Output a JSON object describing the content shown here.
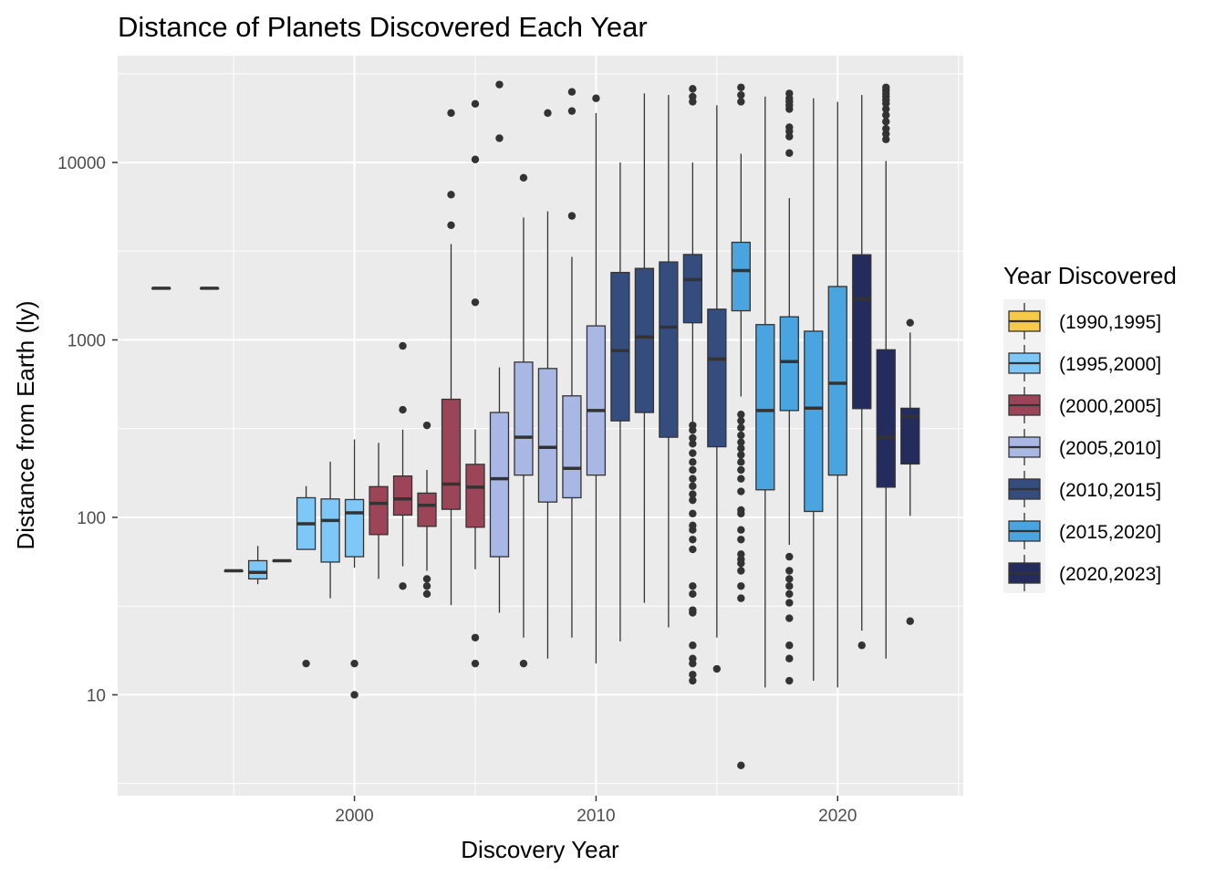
{
  "chart_data": {
    "type": "boxplot",
    "title": "Distance of Planets Discovered Each Year",
    "xlabel": "Discovery Year",
    "ylabel": "Distance from Earth (ly)",
    "x_ticks": [
      2000,
      2010,
      2020
    ],
    "y_ticks": [
      10,
      100,
      1000,
      10000
    ],
    "y_scale": "log10",
    "xlim": [
      1990.2,
      2025.2
    ],
    "ylim": [
      2.7,
      40000
    ],
    "grid": true,
    "legend": {
      "title": "Year Discovered",
      "position": "right",
      "entries": [
        {
          "label": "(1990,1995]",
          "color": "#F7C948"
        },
        {
          "label": "(1995,2000]",
          "color": "#7EC8F8"
        },
        {
          "label": "(2000,2005]",
          "color": "#9C4558"
        },
        {
          "label": "(2005,2010]",
          "color": "#A9B7E4"
        },
        {
          "label": "(2010,2015]",
          "color": "#344C7E"
        },
        {
          "label": "(2015,2020]",
          "color": "#4AA4E0"
        },
        {
          "label": "(2020,2023]",
          "color": "#232C5C"
        }
      ]
    },
    "boxes": [
      {
        "year": 1992,
        "group": 0,
        "q1": 1957,
        "median": 1957,
        "q3": 1957,
        "lower": 1957,
        "upper": 1957,
        "outliers": []
      },
      {
        "year": 1994,
        "group": 0,
        "q1": 1957,
        "median": 1957,
        "q3": 1957,
        "lower": 1957,
        "upper": 1957,
        "outliers": []
      },
      {
        "year": 1995,
        "group": 0,
        "q1": 50,
        "median": 50,
        "q3": 50,
        "lower": 50,
        "upper": 50,
        "outliers": []
      },
      {
        "year": 1996,
        "group": 1,
        "q1": 45,
        "median": 49,
        "q3": 57,
        "lower": 42,
        "upper": 69,
        "outliers": []
      },
      {
        "year": 1997,
        "group": 1,
        "q1": 57,
        "median": 57,
        "q3": 57,
        "lower": 57,
        "upper": 57,
        "outliers": []
      },
      {
        "year": 1998,
        "group": 1,
        "q1": 66,
        "median": 92,
        "q3": 129,
        "lower": 66,
        "upper": 150,
        "outliers": [
          15
        ]
      },
      {
        "year": 1999,
        "group": 1,
        "q1": 56,
        "median": 96,
        "q3": 127,
        "lower": 35,
        "upper": 206,
        "outliers": []
      },
      {
        "year": 2000,
        "group": 1,
        "q1": 60,
        "median": 106,
        "q3": 126,
        "lower": 52,
        "upper": 275,
        "outliers": [
          15,
          10
        ]
      },
      {
        "year": 2001,
        "group": 2,
        "q1": 80,
        "median": 120,
        "q3": 149,
        "lower": 45,
        "upper": 263,
        "outliers": []
      },
      {
        "year": 2002,
        "group": 2,
        "q1": 103,
        "median": 127,
        "q3": 171,
        "lower": 53,
        "upper": 312,
        "outliers": [
          41,
          404,
          925
        ]
      },
      {
        "year": 2003,
        "group": 2,
        "q1": 89,
        "median": 117,
        "q3": 137,
        "lower": 50,
        "upper": 185,
        "outliers": [
          37,
          41,
          45,
          330
        ]
      },
      {
        "year": 2004,
        "group": 2,
        "q1": 111,
        "median": 154,
        "q3": 463,
        "lower": 32,
        "upper": 3470,
        "outliers": [
          4430,
          6590,
          19000
        ]
      },
      {
        "year": 2005,
        "group": 2,
        "q1": 88,
        "median": 148,
        "q3": 199,
        "lower": 51,
        "upper": 313,
        "outliers": [
          21,
          15,
          1630,
          10400,
          21400
        ]
      },
      {
        "year": 2006,
        "group": 3,
        "q1": 60,
        "median": 165,
        "q3": 390,
        "lower": 29,
        "upper": 700,
        "outliers": [
          13700,
          27500
        ]
      },
      {
        "year": 2007,
        "group": 3,
        "q1": 173,
        "median": 283,
        "q3": 750,
        "lower": 21,
        "upper": 4900,
        "outliers": [
          15,
          8200
        ]
      },
      {
        "year": 2008,
        "group": 3,
        "q1": 122,
        "median": 248,
        "q3": 690,
        "lower": 16,
        "upper": 5300,
        "outliers": [
          19000
        ]
      },
      {
        "year": 2009,
        "group": 3,
        "q1": 129,
        "median": 189,
        "q3": 484,
        "lower": 21,
        "upper": 2940,
        "outliers": [
          5000,
          19500,
          25000
        ]
      },
      {
        "year": 2010,
        "group": 3,
        "q1": 173,
        "median": 400,
        "q3": 1200,
        "lower": 15,
        "upper": 19000,
        "outliers": [
          23000
        ]
      },
      {
        "year": 2011,
        "group": 4,
        "q1": 350,
        "median": 870,
        "q3": 2400,
        "lower": 20,
        "upper": 10000,
        "outliers": []
      },
      {
        "year": 2012,
        "group": 4,
        "q1": 390,
        "median": 1040,
        "q3": 2530,
        "lower": 33,
        "upper": 24500,
        "outliers": []
      },
      {
        "year": 2013,
        "group": 4,
        "q1": 283,
        "median": 1180,
        "q3": 2750,
        "lower": 24,
        "upper": 24000,
        "outliers": []
      },
      {
        "year": 2014,
        "group": 4,
        "q1": 1250,
        "median": 2190,
        "q3": 3030,
        "lower": 300,
        "upper": 10000,
        "outliers": [
          12,
          13,
          15,
          16,
          19,
          29,
          30,
          37,
          41,
          66,
          75,
          85,
          90,
          105,
          125,
          135,
          150,
          165,
          185,
          205,
          230,
          260,
          280,
          310,
          330,
          22000,
          23500,
          26000
        ]
      },
      {
        "year": 2015,
        "group": 4,
        "q1": 250,
        "median": 780,
        "q3": 1490,
        "lower": 21,
        "upper": 21000,
        "outliers": [
          14
        ]
      },
      {
        "year": 2016,
        "group": 5,
        "q1": 1460,
        "median": 2460,
        "q3": 3550,
        "lower": 480,
        "upper": 11200,
        "outliers": [
          4,
          35,
          41,
          50,
          55,
          58,
          62,
          75,
          85,
          105,
          110,
          140,
          165,
          185,
          205,
          225,
          245,
          265,
          290,
          320,
          350,
          380,
          22000,
          24000,
          26500
        ]
      },
      {
        "year": 2017,
        "group": 5,
        "q1": 143,
        "median": 400,
        "q3": 1220,
        "lower": 11,
        "upper": 23500,
        "outliers": []
      },
      {
        "year": 2018,
        "group": 5,
        "q1": 400,
        "median": 755,
        "q3": 1350,
        "lower": 70,
        "upper": 6300,
        "outliers": [
          12,
          16,
          19,
          27,
          33,
          37,
          41,
          45,
          50,
          60,
          11300,
          14000,
          15000,
          15800,
          20000,
          21000,
          22000,
          23000,
          24500
        ]
      },
      {
        "year": 2019,
        "group": 5,
        "q1": 108,
        "median": 413,
        "q3": 1120,
        "lower": 12,
        "upper": 23000,
        "outliers": []
      },
      {
        "year": 2020,
        "group": 5,
        "q1": 173,
        "median": 570,
        "q3": 2000,
        "lower": 11,
        "upper": 22000,
        "outliers": []
      },
      {
        "year": 2021,
        "group": 6,
        "q1": 410,
        "median": 1700,
        "q3": 3020,
        "lower": 23,
        "upper": 24000,
        "outliers": [
          19
        ]
      },
      {
        "year": 2022,
        "group": 6,
        "q1": 148,
        "median": 283,
        "q3": 880,
        "lower": 16,
        "upper": 10200,
        "outliers": [
          13500,
          14500,
          15500,
          17000,
          18500,
          20000,
          21500,
          22500,
          23500,
          24500,
          25500,
          26500
        ]
      },
      {
        "year": 2023,
        "group": 6,
        "q1": 200,
        "median": 370,
        "q3": 412,
        "lower": 102,
        "upper": 1100,
        "outliers": [
          26,
          1250
        ]
      }
    ]
  }
}
